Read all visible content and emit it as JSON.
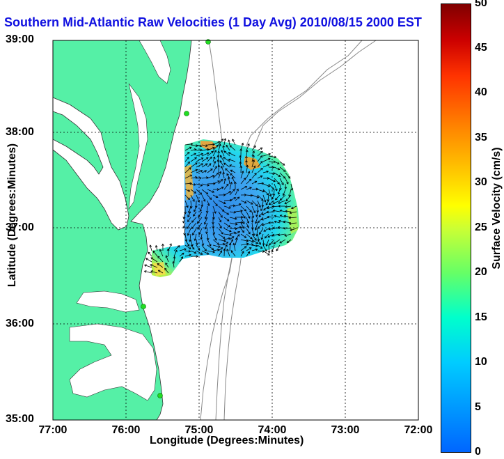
{
  "title": "Southern Mid-Atlantic Raw Velocities (1 Day Avg) 2010/08/15 2000 EST",
  "x_axis": {
    "label": "Longitude (Degrees:Minutes)",
    "ticks": [
      "77:00",
      "76:00",
      "75:00",
      "74:00",
      "73:00",
      "72:00"
    ]
  },
  "y_axis": {
    "label": "Latitude (Degrees:Minutes)",
    "ticks": [
      "39:00",
      "38:00",
      "37:00",
      "36:00",
      "35:00"
    ]
  },
  "colorbar": {
    "label": "Surface Velocity (cm/s)",
    "ticks": [
      "50",
      "45",
      "40",
      "35",
      "30",
      "25",
      "20",
      "15",
      "10",
      "5",
      "0"
    ],
    "range": [
      0,
      50
    ]
  },
  "colors": {
    "land": "#55f0a6",
    "title": "#1010e0",
    "contour": "#888888",
    "station": "#22dd22"
  }
}
